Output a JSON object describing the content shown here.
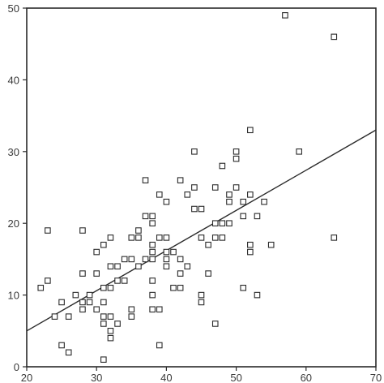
{
  "chart_data": {
    "type": "scatter",
    "title": "",
    "xlabel": "",
    "ylabel": "",
    "xlim": [
      20,
      70
    ],
    "ylim": [
      0,
      50
    ],
    "x_ticks": [
      20,
      30,
      40,
      50,
      60,
      70
    ],
    "y_ticks": [
      0,
      10,
      20,
      30,
      40,
      50
    ],
    "grid": false,
    "legend": "none",
    "colors": {
      "marker_edge": "#2a2a2a",
      "marker_fill": "#ffffff",
      "line": "#2a2a2a"
    },
    "series": [
      {
        "points": [
          [
            22,
            11
          ],
          [
            23,
            12
          ],
          [
            23,
            19
          ],
          [
            24,
            7
          ],
          [
            25,
            9
          ],
          [
            25,
            3
          ],
          [
            26,
            7
          ],
          [
            26,
            2
          ],
          [
            27,
            10
          ],
          [
            28,
            19
          ],
          [
            28,
            13
          ],
          [
            28,
            9
          ],
          [
            28,
            8
          ],
          [
            29,
            10
          ],
          [
            29,
            9
          ],
          [
            30,
            13
          ],
          [
            30,
            8
          ],
          [
            30,
            16
          ],
          [
            31,
            17
          ],
          [
            31,
            11
          ],
          [
            31,
            9
          ],
          [
            31,
            7
          ],
          [
            31,
            6
          ],
          [
            31,
            1
          ],
          [
            32,
            18
          ],
          [
            32,
            14
          ],
          [
            32,
            11
          ],
          [
            32,
            7
          ],
          [
            32,
            5
          ],
          [
            32,
            4
          ],
          [
            33,
            12
          ],
          [
            33,
            14
          ],
          [
            33,
            6
          ],
          [
            34,
            15
          ],
          [
            34,
            12
          ],
          [
            35,
            18
          ],
          [
            35,
            15
          ],
          [
            35,
            8
          ],
          [
            35,
            7
          ],
          [
            36,
            19
          ],
          [
            36,
            18
          ],
          [
            36,
            14
          ],
          [
            37,
            26
          ],
          [
            37,
            21
          ],
          [
            37,
            15
          ],
          [
            38,
            21
          ],
          [
            38,
            20
          ],
          [
            38,
            17
          ],
          [
            38,
            16
          ],
          [
            38,
            15
          ],
          [
            38,
            12
          ],
          [
            38,
            10
          ],
          [
            38,
            8
          ],
          [
            39,
            24
          ],
          [
            39,
            18
          ],
          [
            39,
            8
          ],
          [
            39,
            3
          ],
          [
            40,
            23
          ],
          [
            40,
            18
          ],
          [
            40,
            16
          ],
          [
            40,
            15
          ],
          [
            40,
            14
          ],
          [
            41,
            16
          ],
          [
            41,
            11
          ],
          [
            42,
            26
          ],
          [
            42,
            15
          ],
          [
            42,
            13
          ],
          [
            42,
            11
          ],
          [
            43,
            24
          ],
          [
            43,
            14
          ],
          [
            44,
            30
          ],
          [
            44,
            25
          ],
          [
            44,
            22
          ],
          [
            45,
            22
          ],
          [
            45,
            18
          ],
          [
            45,
            10
          ],
          [
            45,
            9
          ],
          [
            46,
            17
          ],
          [
            46,
            13
          ],
          [
            47,
            25
          ],
          [
            47,
            20
          ],
          [
            47,
            18
          ],
          [
            47,
            6
          ],
          [
            48,
            28
          ],
          [
            48,
            20
          ],
          [
            48,
            18
          ],
          [
            49,
            24
          ],
          [
            49,
            23
          ],
          [
            49,
            20
          ],
          [
            50,
            30
          ],
          [
            50,
            29
          ],
          [
            50,
            25
          ],
          [
            51,
            23
          ],
          [
            51,
            21
          ],
          [
            51,
            11
          ],
          [
            52,
            33
          ],
          [
            52,
            24
          ],
          [
            52,
            17
          ],
          [
            52,
            16
          ],
          [
            53,
            21
          ],
          [
            53,
            10
          ],
          [
            54,
            23
          ],
          [
            55,
            17
          ],
          [
            57,
            49
          ],
          [
            59,
            30
          ],
          [
            64,
            46
          ],
          [
            64,
            18
          ]
        ]
      }
    ],
    "fit_line": {
      "x": [
        20,
        70
      ],
      "y": [
        5,
        33
      ]
    }
  }
}
